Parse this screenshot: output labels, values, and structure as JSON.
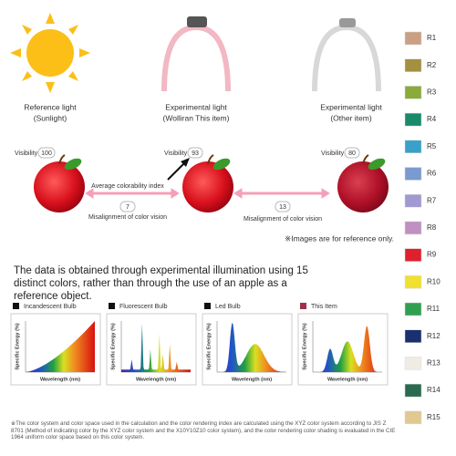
{
  "illustration": {
    "lights": [
      {
        "lines": [
          "Reference light",
          "(Sunlight)"
        ]
      },
      {
        "lines": [
          "Experimental light",
          "(Wolliran This item)"
        ]
      },
      {
        "lines": [
          "Experimental light",
          "(Other item)"
        ]
      }
    ],
    "visibility_label": "Visibility",
    "visibility": [
      100,
      93,
      80
    ],
    "average_label": "Average colorability index",
    "misalignment": [
      7,
      13
    ],
    "misalignment_label": "Misalignment of color vision",
    "note": "※Images are for reference only."
  },
  "headline": "The data is obtained through experimental illumination using 15 distinct colors, rather than through the use of an apple as a reference object.",
  "panels": [
    {
      "label": "Incandescent Bulb",
      "color": "#111111"
    },
    {
      "label": "Fluorescent Bulb",
      "color": "#111111"
    },
    {
      "label": "Led Bulb",
      "color": "#111111"
    },
    {
      "label": "This Item",
      "color": "#a0304c"
    }
  ],
  "axis": {
    "y": "Specific Energy (%)",
    "x": "Wavelength (nm)"
  },
  "footnote": "※The color system and color space used in the calculation and the color rendering index are calculated using the XYZ color system according to JIS Z 8701 (Method of indicating color by the XYZ color system and the X10Y10Z10 color system), and the color rendering color shading is evaluated in the CIE 1964 uniform color space based on this color system.",
  "swatches": [
    {
      "label": "R1",
      "color": "#c9a084"
    },
    {
      "label": "R2",
      "color": "#a39040"
    },
    {
      "label": "R3",
      "color": "#8aaa3c"
    },
    {
      "label": "R4",
      "color": "#1a8a6a"
    },
    {
      "label": "R5",
      "color": "#3aa0c8"
    },
    {
      "label": "R6",
      "color": "#7a9ad0"
    },
    {
      "label": "R7",
      "color": "#a09ad0"
    },
    {
      "label": "R8",
      "color": "#c090c0"
    },
    {
      "label": "R9",
      "color": "#e0202c"
    },
    {
      "label": "R10",
      "color": "#f0e030"
    },
    {
      "label": "R11",
      "color": "#30a050"
    },
    {
      "label": "R12",
      "color": "#1a3070"
    },
    {
      "label": "R13",
      "color": "#f0ece4"
    },
    {
      "label": "R14",
      "color": "#2a6a50"
    },
    {
      "label": "R15",
      "color": "#e0c890"
    }
  ]
}
